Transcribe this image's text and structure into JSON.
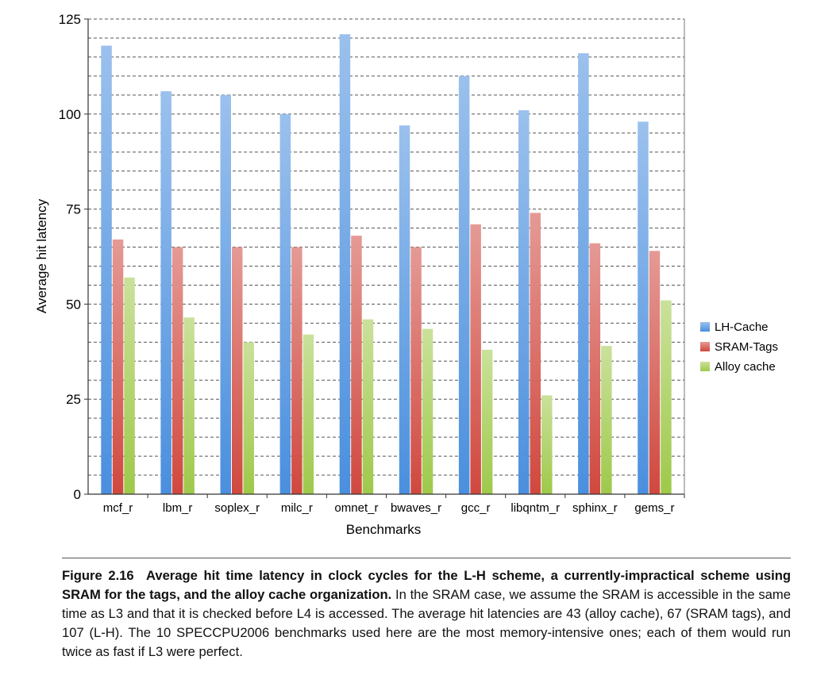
{
  "chart_data": {
    "type": "bar",
    "xlabel": "Benchmarks",
    "ylabel": "Average hit latency",
    "ylim": [
      0,
      125
    ],
    "yticks": [
      0,
      25,
      50,
      75,
      100,
      125
    ],
    "grid": "dashed horizontal",
    "legend_position": "right",
    "categories": [
      "mcf_r",
      "lbm_r",
      "soplex_r",
      "milc_r",
      "omnet_r",
      "bwaves_r",
      "gcc_r",
      "libqntm_r",
      "sphinx_r",
      "gems_r"
    ],
    "series": [
      {
        "name": "LH-Cache",
        "color": "#4a8fde",
        "values": [
          118,
          106,
          105,
          100,
          121,
          97,
          110,
          101,
          116,
          98
        ]
      },
      {
        "name": "SRAM-Tags",
        "color": "#d0483e",
        "values": [
          67,
          65,
          65,
          65,
          68,
          65,
          71,
          74,
          66,
          64
        ]
      },
      {
        "name": "Alloy cache",
        "color": "#9ec94a",
        "values": [
          57,
          46.5,
          40,
          42,
          46,
          43.5,
          38,
          26,
          39,
          51
        ]
      }
    ]
  },
  "caption": {
    "label": "Figure 2.16",
    "bold_text": "Average hit time latency in clock cycles for the L-H scheme, a currently-impractical scheme using SRAM for the tags, and the alloy cache organization.",
    "text": "In the SRAM case, we assume the SRAM is accessible in the same time as L3 and that it is checked before L4 is accessed. The average hit latencies are 43 (alloy cache), 67 (SRAM tags), and 107 (L-H). The 10 SPECCPU2006 benchmarks used here are the most memory-intensive ones; each of them would run twice as fast if L3 were perfect."
  }
}
